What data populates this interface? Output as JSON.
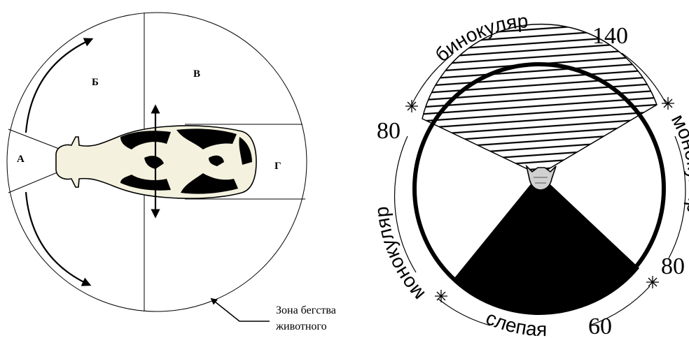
{
  "left_diagram": {
    "zones": {
      "a": "А",
      "b": "Б",
      "v": "В",
      "g": "Г"
    },
    "caption_line1": "Зона бегства",
    "caption_line2": "животного"
  },
  "right_diagram": {
    "arc_labels": {
      "top": "бинокуляр",
      "left": "монокуляр",
      "right": "монокуляр",
      "bottom": "слепая"
    },
    "angles": {
      "top": "140",
      "left": "80",
      "right": "80",
      "bottom": "60"
    }
  }
}
